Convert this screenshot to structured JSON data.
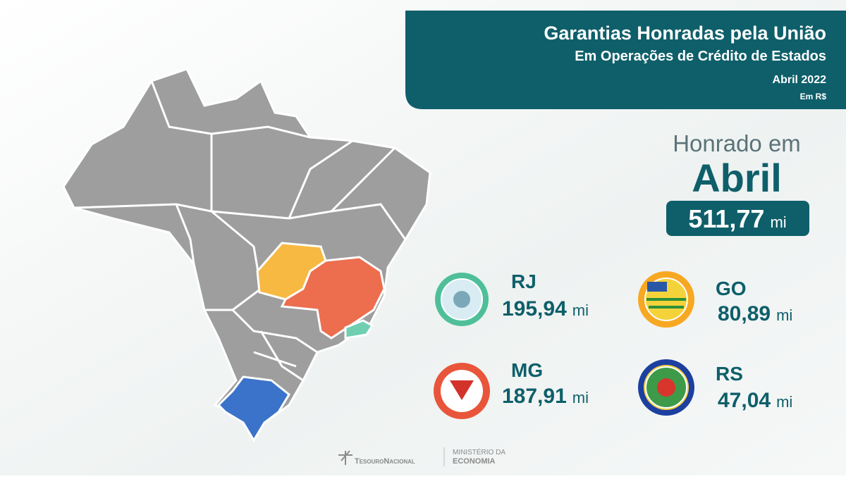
{
  "header": {
    "title": "Garantias Honradas pela União",
    "subtitle": "Em Operações de Crédito de Estados",
    "period": "Abril 2022",
    "unit": "Em R$"
  },
  "total": {
    "label": "Honrado em",
    "month": "Abril",
    "value": "511,77",
    "unit": "mi"
  },
  "states": [
    {
      "code": "RJ",
      "value": "195,94",
      "unit": "mi"
    },
    {
      "code": "GO",
      "value": "80,89",
      "unit": "mi"
    },
    {
      "code": "MG",
      "value": "187,91",
      "unit": "mi"
    },
    {
      "code": "RS",
      "value": "47,04",
      "unit": "mi"
    }
  ],
  "footer": {
    "logo1": "TesouroNacional",
    "logo2_line1": "MINISTÉRIO DA",
    "logo2_line2": "ECONOMIA"
  }
}
